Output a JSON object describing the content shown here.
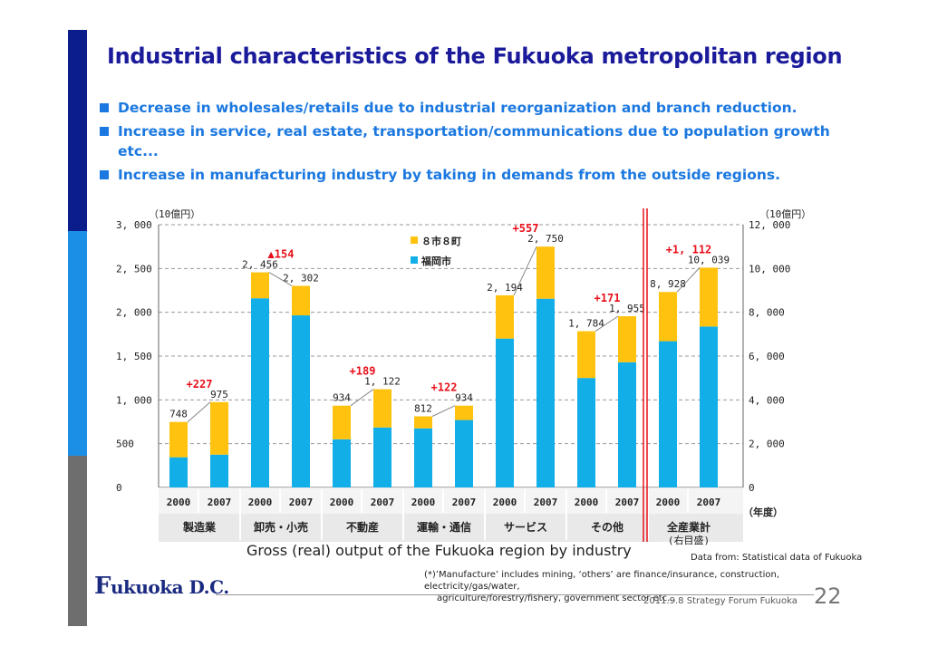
{
  "page": {
    "title": "Industrial characteristics of the Fukuoka metropolitan region",
    "bullets": [
      "Decrease in wholesales/retails due to industrial reorganization and branch reduction.",
      "Increase in service, real estate, transportation/communications due to population growth etc...",
      "Increase in manufacturing industry by taking in demands from the outside regions."
    ],
    "caption": "Gross (real) output of the Fukuoka region by industry",
    "source": "Data from: Statistical data of Fukuoka",
    "note_line1": "(*)’Manufacture’ includes mining, ‘others’ are finance/insurance, construction, electricity/gas/water,",
    "note_line2": "agriculture/forestry/fishery, government sector etc...",
    "logo_text": "ukuoka D.C.",
    "logo_initial": "F",
    "footer": "2011.9.8 Strategy Forum Fukuoka",
    "page_number": "22"
  },
  "colors": {
    "sidebar_top": "#0b1d8a",
    "sidebar_mid": "#1b8fe6",
    "sidebar_bottom": "#6e6e6e",
    "fukuoka_city": "#11aee8",
    "eight_cities": "#ffc20e",
    "change_label": "#e8101a",
    "divider": "#e8101a"
  },
  "chart_data": {
    "type": "bar",
    "stacked": true,
    "left_unit": "（10億円）",
    "right_unit": "（10億円）",
    "year_unit": "（年度）",
    "left_ylim": [
      0,
      3000
    ],
    "right_ylim": [
      0,
      12000
    ],
    "left_ticks": [
      "0",
      "500",
      "1, 000",
      "1, 500",
      "2, 000",
      "2, 500",
      "3, 000"
    ],
    "right_ticks": [
      "0",
      "2, 000",
      "4, 000",
      "6, 000",
      "8, 000",
      "10, 000",
      "12, 000"
    ],
    "grid": true,
    "legend": [
      {
        "name": "８市８町",
        "color": "#ffc20e"
      },
      {
        "name": "福岡市",
        "color": "#11aee8"
      }
    ],
    "legend_position": "top-center",
    "groups": [
      {
        "industry": "製造業",
        "axis": "left",
        "years": [
          "2000",
          "2007"
        ],
        "fukuoka": [
          345,
          375
        ],
        "cities": [
          403,
          600
        ],
        "totals": [
          "748",
          "975"
        ],
        "change": "+227"
      },
      {
        "industry": "卸売・小売",
        "axis": "left",
        "years": [
          "2000",
          "2007"
        ],
        "fukuoka": [
          2160,
          1965
        ],
        "cities": [
          296,
          337
        ],
        "totals": [
          "2, 456",
          "2, 302"
        ],
        "change": "▲154"
      },
      {
        "industry": "不動産",
        "axis": "left",
        "years": [
          "2000",
          "2007"
        ],
        "fukuoka": [
          550,
          685
        ],
        "cities": [
          384,
          437
        ],
        "totals": [
          "934",
          "1, 122"
        ],
        "change": "+189"
      },
      {
        "industry": "運輸・通信",
        "axis": "left",
        "years": [
          "2000",
          "2007"
        ],
        "fukuoka": [
          675,
          770
        ],
        "cities": [
          137,
          164
        ],
        "totals": [
          "812",
          "934"
        ],
        "change": "+122"
      },
      {
        "industry": "サービス",
        "axis": "left",
        "years": [
          "2000",
          "2007"
        ],
        "fukuoka": [
          1700,
          2155
        ],
        "cities": [
          494,
          595
        ],
        "totals": [
          "2, 194",
          "2, 750"
        ],
        "change": "+557"
      },
      {
        "industry": "その他",
        "axis": "left",
        "years": [
          "2000",
          "2007"
        ],
        "fukuoka": [
          1250,
          1430
        ],
        "cities": [
          534,
          525
        ],
        "totals": [
          "1, 784",
          "1, 955"
        ],
        "change": "+171"
      },
      {
        "industry": "全産業計",
        "sub": "(右目盛)",
        "axis": "right",
        "years": [
          "2000",
          "2007"
        ],
        "fukuoka": [
          6680,
          7350
        ],
        "cities": [
          2248,
          2689
        ],
        "totals": [
          "8, 928",
          "10, 039"
        ],
        "change": "+1, 112"
      }
    ]
  }
}
